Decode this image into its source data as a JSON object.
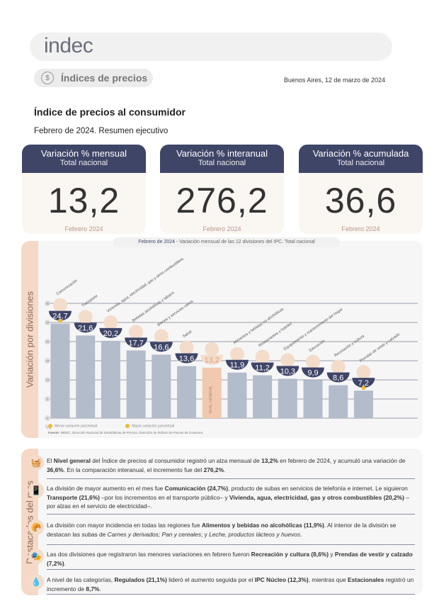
{
  "header": {
    "logo": "indec",
    "section": "Índices de precios",
    "date": "Buenos Aires, 12 de marzo de 2024"
  },
  "report": {
    "title": "Índice de precios al consumidor",
    "subtitle": "Febrero de 2024. Resumen ejecutivo"
  },
  "cards": [
    {
      "title": "Variación % mensual",
      "subtitle": "Total nacional",
      "value": "13,2",
      "period": "Febrero 2024"
    },
    {
      "title": "Variación % interanual",
      "subtitle": "Total nacional",
      "value": "276,2",
      "period": "Febrero 2024"
    },
    {
      "title": "Variación % acumulada",
      "subtitle": "Total nacional",
      "value": "36,6",
      "period": "Febrero 2024"
    }
  ],
  "chart_side_label": "Variación por divisiones",
  "chart_data": {
    "type": "bar",
    "title_prefix": "Febrero de 2024",
    "title": " - Variación mensual de las 12 divisiones del IPC. Total nacional",
    "categories": [
      "Comunicación",
      "Transporte",
      "Vivienda, agua, electricidad, gas y otros combustibles",
      "Bebidas alcohólicas y tabaco",
      "Bienes y servicios varios",
      "Salud",
      "Nivel general",
      "Alimentos y bebidas no alcohólicas",
      "Restaurantes y hoteles",
      "Equipamiento y mantenimiento del hogar",
      "Educación",
      "Recreación y cultura",
      "Prendas de vestir y calzado"
    ],
    "values": [
      24.7,
      21.6,
      20.2,
      17.7,
      16.6,
      13.6,
      13.2,
      11.9,
      11.2,
      10.3,
      9.9,
      8.6,
      7.2
    ],
    "labels": [
      "24,7",
      "21,6",
      "20,2",
      "17,7",
      "16,6",
      "13,6",
      "13,2",
      "11,9",
      "11,2",
      "10,3",
      "9,9",
      "8,6",
      "7,2"
    ],
    "general_label": "NIVEL GENERAL",
    "yticks": [
      0,
      5,
      10,
      15,
      20,
      25,
      30
    ],
    "ylim": [
      0,
      30
    ],
    "yunit": "%",
    "legend": [
      "Menor variación porcentual",
      "Mayor variación porcentual"
    ],
    "source_label": "Fuente:",
    "source": "INDEC, Dirección Nacional de Estadísticas de Precios. Dirección de Índices de Precios de Consumo.",
    "colors": {
      "bar": "#b3bccb",
      "general": "#f1c9ae",
      "badge": "#3f4567",
      "marker": "#f0b93b"
    }
  },
  "highlights_label": "Destacados del mes",
  "highlights": [
    {
      "icon": "basket-icon",
      "parts": [
        [
          "El ",
          0
        ],
        [
          "Nivel general",
          1
        ],
        [
          " del Índice de precios al consumidor registró un alza mensual de ",
          0
        ],
        [
          "13,2%",
          1
        ],
        [
          " en febrero de 2024, y acumuló una variación de ",
          0
        ],
        [
          "36,6%",
          1
        ],
        [
          ". En la comparación interanual, el incremento fue del ",
          0
        ],
        [
          "276,2%",
          1
        ],
        [
          ".",
          0
        ]
      ]
    },
    {
      "icon": "phone-icon",
      "parts": [
        [
          "La división de mayor aumento en el mes fue ",
          0
        ],
        [
          "Comunicación (24,7%)",
          1
        ],
        [
          ", producto de subas en servicios de telefonía e internet. Le siguieron ",
          0
        ],
        [
          "Transporte (21,6%)",
          1
        ],
        [
          " –por los incrementos en el transporte público– y ",
          0
        ],
        [
          "Vivienda, agua, electricidad, gas y otros combustibles (20,2%)",
          1
        ],
        [
          " –por alzas en el servicio de electricidad–.",
          0
        ]
      ]
    },
    {
      "icon": "food-icon",
      "parts": [
        [
          "La división con mayor incidencia en todas las regiones fue ",
          0
        ],
        [
          "Alimentos y bebidas no alcohólicas (11,9%)",
          1
        ],
        [
          ". Al interior de la división se destacan las subas de ",
          0
        ],
        [
          "Carnes y derivados; Pan y cereales",
          2
        ],
        [
          "; y ",
          0
        ],
        [
          "Leche, productos lácteos y huevos",
          2
        ],
        [
          ".",
          0
        ]
      ]
    },
    {
      "icon": "recreation-icon",
      "parts": [
        [
          "Las dos divisiones que registraron las menores variaciones en febrero fueron ",
          0
        ],
        [
          "Recreación y cultura (8,6%)",
          1
        ],
        [
          " y ",
          0
        ],
        [
          "Prendas de vestir y calzado (7,2%)",
          1
        ],
        [
          ".",
          0
        ]
      ]
    },
    {
      "icon": "categories-icon",
      "parts": [
        [
          "A nivel de las categorías, ",
          0
        ],
        [
          "Regulados (21,1%)",
          1
        ],
        [
          " lideró el aumento seguida por el ",
          0
        ],
        [
          "IPC Núcleo (12,3%)",
          1
        ],
        [
          ", mientras que ",
          0
        ],
        [
          "Estacionales",
          1
        ],
        [
          " registró un incremento de ",
          0
        ],
        [
          "8,7%",
          1
        ],
        [
          ".",
          0
        ]
      ]
    }
  ]
}
